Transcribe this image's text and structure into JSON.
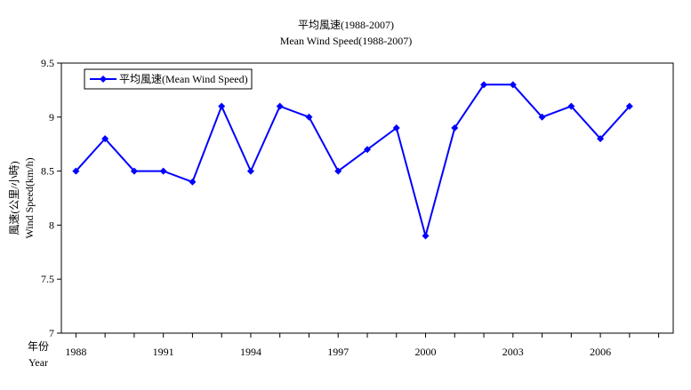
{
  "chart_data": {
    "type": "line",
    "title": "平均風速(1988-2007)",
    "subtitle": "Mean Wind Speed(1988-2007)",
    "ylabel": "風速(公里/小時)",
    "ylabel2": "Wind Speed(km/h)",
    "xlabel": "年份",
    "xlabel2": "Year",
    "ylim": [
      7,
      9.5
    ],
    "yticks": [
      "7",
      "7.5",
      "8",
      "8.5",
      "9",
      "9.5"
    ],
    "xlim": [
      1987.5,
      2008.5
    ],
    "xticks": [
      "1988",
      "1991",
      "1994",
      "1997",
      "2000",
      "2003",
      "2006"
    ],
    "grid": false,
    "legend_position": "top-left",
    "series": [
      {
        "name": "平均風速(Mean Wind Speed)",
        "color": "#0000ff",
        "x": [
          1988,
          1989,
          1990,
          1991,
          1992,
          1993,
          1994,
          1995,
          1996,
          1997,
          1998,
          1999,
          2000,
          2001,
          2002,
          2003,
          2004,
          2005,
          2006,
          2007
        ],
        "y": [
          8.5,
          8.8,
          8.5,
          8.5,
          8.4,
          9.1,
          8.5,
          9.1,
          9.0,
          8.5,
          8.7,
          8.9,
          7.9,
          8.9,
          9.3,
          9.3,
          9.0,
          9.1,
          8.8,
          9.1
        ]
      }
    ]
  }
}
